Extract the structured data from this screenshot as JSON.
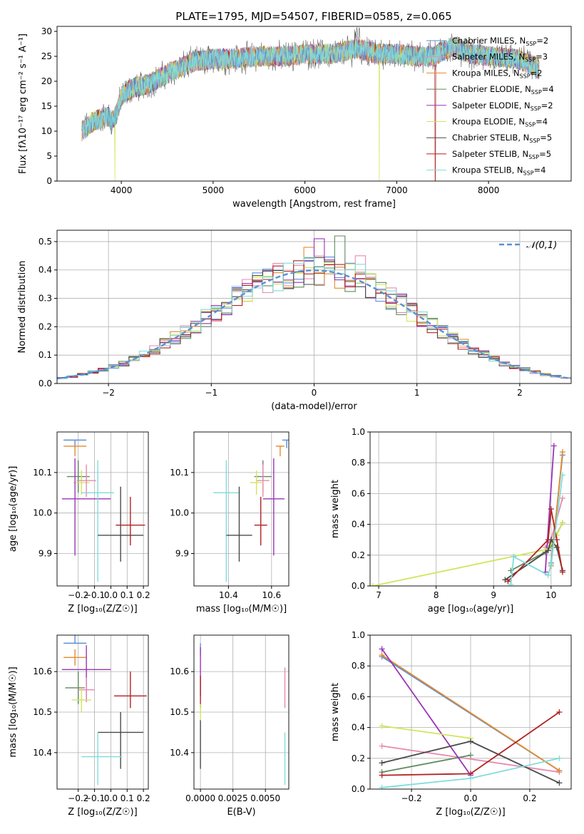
{
  "figure_title": "PLATE=1795, MJD=54507, FIBERID=0585, z=0.065",
  "colors": {
    "Chabrier MILES": "#5b8fd6",
    "Salpeter MILES": "#e88ab0",
    "Kroupa MILES": "#e38a2e",
    "Chabrier ELODIE": "#5f8a5f",
    "Salpeter ELODIE": "#9a35b5",
    "Kroupa ELODIE": "#cfe65b",
    "Chabrier STELIB": "#4a4a4a",
    "Salpeter STELIB": "#b22222",
    "Kroupa STELIB": "#7fdcdc",
    "normal": "#5b8fd6"
  },
  "chart_data": [
    {
      "id": "spectrum",
      "type": "line",
      "title": "",
      "xlabel": "wavelength [Angstrom, rest frame]",
      "ylabel": "Flux [f",
      "ylabel_full": "Flux [fλ10⁻¹⁷ erg cm⁻² s⁻¹ A⁻¹]",
      "xlim": [
        3300,
        8900
      ],
      "ylim": [
        0,
        31
      ],
      "xticks": [
        4000,
        5000,
        6000,
        7000,
        8000
      ],
      "yticks": [
        0,
        5,
        10,
        15,
        20,
        25,
        30
      ],
      "legend_position": "top-right",
      "legend": [
        "Chabrier MILES, N_SSP=2",
        "Salpeter MILES, N_SSP=3",
        "Kroupa MILES, N_SSP=2",
        "Chabrier ELODIE, N_SSP=4",
        "Salpeter ELODIE, N_SSP=2",
        "Kroupa ELODIE, N_SSP=4",
        "Chabrier STELIB, N_SSP=5",
        "Salpeter STELIB, N_SSP=5",
        "Kroupa STELIB, N_SSP=4"
      ],
      "continuum": {
        "wavelength": [
          3570,
          3700,
          3850,
          3900,
          3950,
          4000,
          4100,
          4300,
          4500,
          4800,
          5000,
          5200,
          5500,
          5800,
          6000,
          6300,
          6560,
          6800,
          7000,
          7200,
          7400,
          7600,
          7800,
          8000,
          8300,
          8500,
          8550
        ],
        "flux": [
          10,
          12,
          13,
          12,
          13.5,
          17,
          18.5,
          19.5,
          21.5,
          24,
          24.5,
          24.5,
          25,
          25,
          25.5,
          25.5,
          26.5,
          25.5,
          25.5,
          25,
          25,
          27,
          25.5,
          25,
          24.5,
          23,
          22.5
        ]
      },
      "dips": [
        {
          "wavelength": 3930,
          "to": 0,
          "series": "Kroupa ELODIE"
        },
        {
          "wavelength": 6810,
          "to": 0,
          "series": "Kroupa ELODIE"
        },
        {
          "wavelength": 7420,
          "to": 0,
          "series": "Salpeter STELIB"
        }
      ]
    },
    {
      "id": "residuals",
      "type": "step-histogram",
      "xlabel": "(data-model)/error",
      "ylabel": "Normed distribution",
      "xlim": [
        -2.5,
        2.5
      ],
      "ylim": [
        0,
        0.54
      ],
      "xticks": [
        -2,
        -1,
        0,
        1,
        2
      ],
      "yticks": [
        0.0,
        0.1,
        0.2,
        0.3,
        0.4,
        0.5
      ],
      "bin_width": 0.1,
      "legend_position": "top-right",
      "normal_label": "𝒩(0,1)",
      "peak_values": {
        "Chabrier ELODIE": 0.52,
        "Salpeter ELODIE": 0.51,
        "Kroupa MILES": 0.48,
        "Salpeter MILES": 0.45,
        "Kroupa STELIB": 0.42
      }
    },
    {
      "id": "age_vs_Z",
      "type": "errorbar",
      "xlabel": "Z [log₁₀(Z/Z☉)]",
      "ylabel": "age  [log₁₀(age/yr)]",
      "xlim": [
        -0.33,
        0.23
      ],
      "ylim": [
        9.82,
        10.2
      ],
      "xticks": [
        -0.2,
        -0.1,
        0.0,
        0.1,
        0.2
      ],
      "yticks": [
        9.9,
        10.0,
        10.1
      ],
      "points": [
        {
          "series": "Chabrier MILES",
          "x": -0.22,
          "y": 10.18,
          "xerr": [
            0.07,
            0.07
          ],
          "yerr": [
            0.02,
            0.0
          ]
        },
        {
          "series": "Kroupa MILES",
          "x": -0.22,
          "y": 10.165,
          "xerr": [
            0.07,
            0.07
          ],
          "yerr": [
            0.025,
            0.0
          ]
        },
        {
          "series": "Chabrier ELODIE",
          "x": -0.2,
          "y": 10.09,
          "xerr": [
            0.07,
            0.07
          ],
          "yerr": [
            0.04,
            0.04
          ]
        },
        {
          "series": "Kroupa ELODIE",
          "x": -0.18,
          "y": 10.075,
          "xerr": [
            0.05,
            0.05
          ],
          "yerr": [
            0.03,
            0.03
          ]
        },
        {
          "series": "Salpeter MILES",
          "x": -0.15,
          "y": 10.08,
          "xerr": [
            0.06,
            0.06
          ],
          "yerr": [
            0.04,
            0.04
          ]
        },
        {
          "series": "Salpeter ELODIE",
          "x": -0.22,
          "y": 10.035,
          "xerr": [
            0.08,
            0.22
          ],
          "yerr": [
            0.14,
            0.1
          ]
        },
        {
          "series": "Kroupa STELIB",
          "x": -0.08,
          "y": 10.05,
          "xerr": [
            0.1,
            0.1
          ],
          "yerr": [
            0.22,
            0.08
          ]
        },
        {
          "series": "Chabrier STELIB",
          "x": 0.06,
          "y": 9.945,
          "xerr": [
            0.14,
            0.14
          ],
          "yerr": [
            0.065,
            0.12
          ]
        },
        {
          "series": "Salpeter STELIB",
          "x": 0.12,
          "y": 9.97,
          "xerr": [
            0.09,
            0.09
          ],
          "yerr": [
            0.05,
            0.07
          ]
        }
      ]
    },
    {
      "id": "age_vs_mass",
      "type": "errorbar",
      "xlabel": "mass [log₁₀(M/M☉)]",
      "ylabel": "",
      "xlim": [
        10.24,
        10.68
      ],
      "ylim": [
        9.82,
        10.2
      ],
      "xticks": [
        10.4,
        10.6
      ],
      "yticks": [
        9.9,
        10.0,
        10.1
      ],
      "points": [
        {
          "series": "Chabrier MILES",
          "x": 10.67,
          "y": 10.18,
          "xerr": [
            0.02,
            0.02
          ],
          "yerr": [
            0.02,
            0.0
          ]
        },
        {
          "series": "Kroupa MILES",
          "x": 10.64,
          "y": 10.165,
          "xerr": [
            0.02,
            0.02
          ],
          "yerr": [
            0.025,
            0.0
          ]
        },
        {
          "series": "Chabrier ELODIE",
          "x": 10.56,
          "y": 10.09,
          "xerr": [
            0.04,
            0.04
          ],
          "yerr": [
            0.04,
            0.04
          ]
        },
        {
          "series": "Salpeter MILES",
          "x": 10.56,
          "y": 10.08,
          "xerr": [
            0.03,
            0.03
          ],
          "yerr": [
            0.04,
            0.04
          ]
        },
        {
          "series": "Kroupa ELODIE",
          "x": 10.53,
          "y": 10.075,
          "xerr": [
            0.03,
            0.03
          ],
          "yerr": [
            0.03,
            0.03
          ]
        },
        {
          "series": "Salpeter ELODIE",
          "x": 10.61,
          "y": 10.035,
          "xerr": [
            0.05,
            0.05
          ],
          "yerr": [
            0.14,
            0.1
          ]
        },
        {
          "series": "Kroupa STELIB",
          "x": 10.39,
          "y": 10.05,
          "xerr": [
            0.06,
            0.06
          ],
          "yerr": [
            0.22,
            0.08
          ]
        },
        {
          "series": "Chabrier STELIB",
          "x": 10.45,
          "y": 9.945,
          "xerr": [
            0.06,
            0.06
          ],
          "yerr": [
            0.065,
            0.12
          ]
        },
        {
          "series": "Salpeter STELIB",
          "x": 10.55,
          "y": 9.97,
          "xerr": [
            0.03,
            0.03
          ],
          "yerr": [
            0.05,
            0.07
          ]
        }
      ]
    },
    {
      "id": "weight_vs_age",
      "type": "line",
      "xlabel": "age  [log₁₀(age/yr)]",
      "ylabel": "mass weight",
      "xlim": [
        6.85,
        10.35
      ],
      "ylim": [
        0,
        1
      ],
      "xticks": [
        7,
        8,
        9,
        10
      ],
      "yticks": [
        0.0,
        0.2,
        0.4,
        0.6,
        0.8,
        1.0
      ],
      "series": [
        {
          "name": "Chabrier MILES",
          "x": [
            10.0,
            10.2
          ],
          "y": [
            0.15,
            0.85
          ]
        },
        {
          "name": "Salpeter MILES",
          "x": [
            9.9,
            10.0,
            10.2
          ],
          "y": [
            0.25,
            0.3,
            0.57
          ]
        },
        {
          "name": "Kroupa MILES",
          "x": [
            10.0,
            10.2
          ],
          "y": [
            0.13,
            0.87
          ]
        },
        {
          "name": "Chabrier ELODIE",
          "x": [
            9.3,
            9.9,
            10.0,
            10.2
          ],
          "y": [
            0.1,
            0.22,
            0.26,
            0.41
          ]
        },
        {
          "name": "Salpeter ELODIE",
          "x": [
            9.9,
            10.05
          ],
          "y": [
            0.09,
            0.91
          ]
        },
        {
          "name": "Kroupa ELODIE",
          "x": [
            6.9,
            9.95,
            10.1,
            10.2
          ],
          "y": [
            0.0,
            0.24,
            0.33,
            0.41
          ]
        },
        {
          "name": "Chabrier STELIB",
          "x": [
            9.2,
            9.95,
            10.0,
            10.1,
            10.2
          ],
          "y": [
            0.04,
            0.23,
            0.3,
            0.25,
            0.1
          ]
        },
        {
          "name": "Salpeter STELIB",
          "x": [
            9.25,
            9.95,
            10.0,
            10.1,
            10.2
          ],
          "y": [
            0.03,
            0.3,
            0.5,
            0.3,
            0.09
          ]
        },
        {
          "name": "Kroupa STELIB",
          "x": [
            9.3,
            9.35,
            9.95,
            10.0,
            10.2
          ],
          "y": [
            0.01,
            0.19,
            0.07,
            0.14,
            0.72
          ]
        }
      ]
    },
    {
      "id": "mass_vs_Z",
      "type": "errorbar",
      "xlabel": "Z [log₁₀(Z/Z☉)]",
      "ylabel": "mass [log₁₀(M/M☉)]",
      "xlim": [
        -0.33,
        0.23
      ],
      "ylim": [
        10.31,
        10.69
      ],
      "xticks": [
        -0.2,
        -0.1,
        0.0,
        0.1,
        0.2
      ],
      "yticks": [
        10.4,
        10.5,
        10.6
      ],
      "points": [
        {
          "series": "Chabrier MILES",
          "x": -0.22,
          "y": 10.67,
          "xerr": [
            0.07,
            0.07
          ],
          "yerr": [
            0.0,
            0.04
          ]
        },
        {
          "series": "Kroupa MILES",
          "x": -0.22,
          "y": 10.635,
          "xerr": [
            0.07,
            0.07
          ],
          "yerr": [
            0.02,
            0.02
          ]
        },
        {
          "series": "Salpeter ELODIE",
          "x": -0.15,
          "y": 10.605,
          "xerr": [
            0.15,
            0.15
          ],
          "yerr": [
            0.08,
            0.06
          ]
        },
        {
          "series": "Chabrier ELODIE",
          "x": -0.2,
          "y": 10.56,
          "xerr": [
            0.08,
            0.04
          ],
          "yerr": [
            0.04,
            0.04
          ]
        },
        {
          "series": "Salpeter MILES",
          "x": -0.15,
          "y": 10.555,
          "xerr": [
            0.05,
            0.05
          ],
          "yerr": [
            0.03,
            0.03
          ]
        },
        {
          "series": "Kroupa ELODIE",
          "x": -0.18,
          "y": 10.53,
          "xerr": [
            0.06,
            0.06
          ],
          "yerr": [
            0.03,
            0.03
          ]
        },
        {
          "series": "Salpeter STELIB",
          "x": 0.12,
          "y": 10.54,
          "xerr": [
            0.1,
            0.1
          ],
          "yerr": [
            0.03,
            0.06
          ]
        },
        {
          "series": "Chabrier STELIB",
          "x": 0.06,
          "y": 10.45,
          "xerr": [
            0.14,
            0.14
          ],
          "yerr": [
            0.09,
            0.05
          ]
        },
        {
          "series": "Kroupa STELIB",
          "x": -0.08,
          "y": 10.39,
          "xerr": [
            0.1,
            0.15
          ],
          "yerr": [
            0.07,
            0.06
          ]
        }
      ]
    },
    {
      "id": "mass_vs_EBV",
      "type": "errorbar",
      "xlabel": "E(B-V)",
      "ylabel": "",
      "xlim": [
        -0.0005,
        0.0068
      ],
      "ylim": [
        10.31,
        10.69
      ],
      "xticks": [
        0.0,
        0.0025,
        0.005
      ],
      "xtick_labels": [
        "0.0000",
        "0.0025",
        "0.0050"
      ],
      "yticks": [
        10.4,
        10.5,
        10.6
      ],
      "points": [
        {
          "series": "Chabrier MILES",
          "x": 0.0,
          "y": 10.67,
          "yerr": [
            0.03,
            0.0
          ]
        },
        {
          "series": "Salpeter ELODIE",
          "x": 0.0,
          "y": 10.6,
          "yerr": [
            0.06,
            0.06
          ]
        },
        {
          "series": "Salpeter STELIB",
          "x": 0.0,
          "y": 10.54,
          "yerr": [
            0.03,
            0.05
          ]
        },
        {
          "series": "Kroupa ELODIE",
          "x": 0.0,
          "y": 10.5,
          "yerr": [
            0.02,
            0.02
          ]
        },
        {
          "series": "Chabrier STELIB",
          "x": 0.0,
          "y": 10.42,
          "yerr": [
            0.06,
            0.06
          ]
        },
        {
          "series": "Salpeter MILES",
          "x": 0.0065,
          "y": 10.555,
          "yerr": [
            0.045,
            0.055
          ]
        },
        {
          "series": "Kroupa STELIB",
          "x": 0.0065,
          "y": 10.39,
          "yerr": [
            0.07,
            0.06
          ]
        }
      ]
    },
    {
      "id": "weight_vs_Z",
      "type": "line",
      "xlabel": "Z [log₁₀(Z/Z☉)]",
      "ylabel": "mass weight",
      "xlim": [
        -0.34,
        0.34
      ],
      "ylim": [
        0,
        1
      ],
      "xticks": [
        -0.2,
        0.0,
        0.2
      ],
      "yticks": [
        0.0,
        0.2,
        0.4,
        0.6,
        0.8,
        1.0
      ],
      "series": [
        {
          "name": "Chabrier MILES",
          "x": [
            -0.3,
            0.3
          ],
          "y": [
            0.86,
            0.12
          ]
        },
        {
          "name": "Salpeter MILES",
          "x": [
            -0.3,
            0.3
          ],
          "y": [
            0.28,
            0.11
          ]
        },
        {
          "name": "Kroupa MILES",
          "x": [
            -0.3,
            0.3
          ],
          "y": [
            0.87,
            0.12
          ]
        },
        {
          "name": "Chabrier ELODIE",
          "x": [
            -0.3,
            0.0
          ],
          "y": [
            0.11,
            0.22
          ]
        },
        {
          "name": "Salpeter ELODIE",
          "x": [
            -0.3,
            0.0
          ],
          "y": [
            0.91,
            0.09
          ]
        },
        {
          "name": "Kroupa ELODIE",
          "x": [
            -0.3,
            0.0
          ],
          "y": [
            0.41,
            0.33
          ]
        },
        {
          "name": "Chabrier STELIB",
          "x": [
            -0.3,
            0.0,
            0.3
          ],
          "y": [
            0.17,
            0.31,
            0.04
          ]
        },
        {
          "name": "Salpeter STELIB",
          "x": [
            -0.3,
            0.0,
            0.3
          ],
          "y": [
            0.09,
            0.1,
            0.5
          ]
        },
        {
          "name": "Kroupa STELIB",
          "x": [
            -0.3,
            0.0,
            0.3
          ],
          "y": [
            0.01,
            0.07,
            0.2
          ]
        }
      ]
    }
  ]
}
